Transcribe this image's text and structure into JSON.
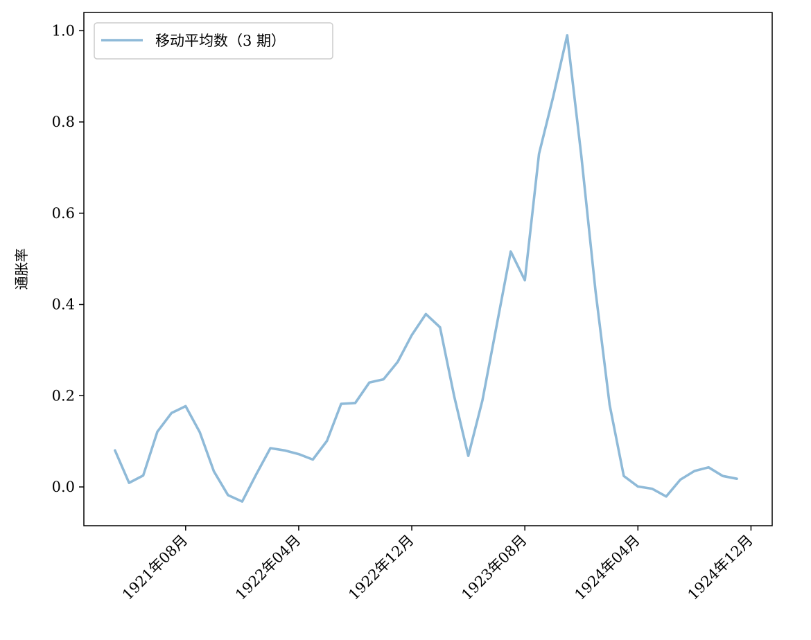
{
  "chart_data": {
    "type": "line",
    "title": "",
    "xlabel": "",
    "ylabel": "通胀率",
    "ylim": [
      -0.085,
      1.04
    ],
    "xlim_month_index": [
      -7.2,
      41.5
    ],
    "grid": false,
    "legend_position": "upper-left",
    "yticks": [
      0.0,
      0.2,
      0.4,
      0.6,
      0.8,
      1.0
    ],
    "ytick_labels": [
      "0.0",
      "0.2",
      "0.4",
      "0.6",
      "0.8",
      "1.0"
    ],
    "xticks": [
      {
        "month_index": 0,
        "label": "1921年08月"
      },
      {
        "month_index": 8,
        "label": "1922年04月"
      },
      {
        "month_index": 16,
        "label": "1922年12月"
      },
      {
        "month_index": 24,
        "label": "1923年08月"
      },
      {
        "month_index": 32,
        "label": "1924年04月"
      },
      {
        "month_index": 40,
        "label": "1924年12月"
      }
    ],
    "series": [
      {
        "name": "移动平均数（3 期）",
        "color": "#8fbad8",
        "x_month_index": [
          -5,
          -4,
          -3,
          -2,
          -1,
          0,
          1,
          2,
          3,
          4,
          5,
          6,
          7,
          8,
          9,
          10,
          11,
          12,
          13,
          14,
          15,
          16,
          17,
          18,
          19,
          20,
          21,
          22,
          23,
          24,
          25,
          26,
          27,
          28,
          29,
          30,
          31,
          32,
          33,
          34,
          35,
          36,
          37,
          38,
          39
        ],
        "values": [
          0.08,
          0.009,
          0.025,
          0.121,
          0.162,
          0.177,
          0.12,
          0.034,
          -0.018,
          -0.032,
          0.028,
          0.085,
          0.08,
          0.072,
          0.06,
          0.101,
          0.182,
          0.184,
          0.229,
          0.236,
          0.274,
          0.333,
          0.379,
          0.35,
          0.199,
          0.068,
          0.19,
          0.353,
          0.516,
          0.453,
          0.73,
          0.855,
          0.99,
          0.725,
          0.43,
          0.18,
          0.024,
          0.001,
          -0.004,
          -0.021,
          0.016,
          0.035,
          0.043,
          0.024,
          0.018
        ]
      }
    ]
  }
}
